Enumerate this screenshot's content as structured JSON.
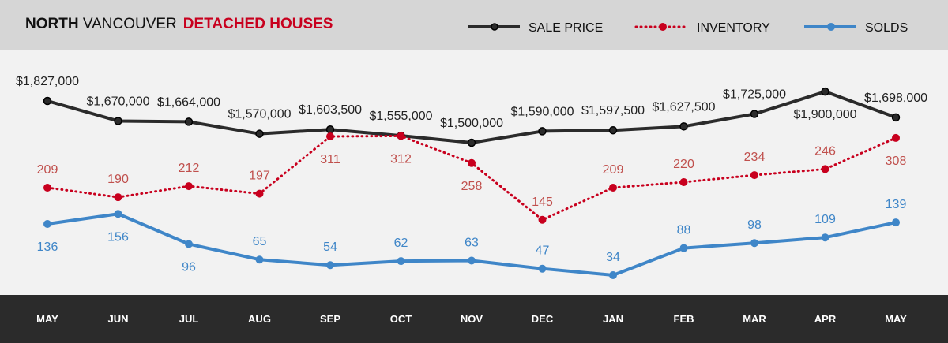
{
  "chart_data": {
    "type": "line",
    "title": {
      "bold": "NORTH",
      "regular": "VANCOUVER",
      "subtitle": "DETACHED HOUSES"
    },
    "categories": [
      "MAY",
      "JUN",
      "JUL",
      "AUG",
      "SEP",
      "OCT",
      "NOV",
      "DEC",
      "JAN",
      "FEB",
      "MAR",
      "APR",
      "MAY"
    ],
    "legend_placement": "top-right",
    "grid": false,
    "series": [
      {
        "name": "SALE PRICE",
        "color": "#2b2b2b",
        "label_color": "#222222",
        "style": "solid",
        "values": [
          1827000,
          1670000,
          1664000,
          1570000,
          1603500,
          1555000,
          1500000,
          1590000,
          1597500,
          1627500,
          1725000,
          1900000,
          1698000
        ],
        "labels": [
          "$1,827,000",
          "$1,670,000",
          "$1,664,000",
          "$1,570,000",
          "$1,603,500",
          "$1,555,000",
          "$1,500,000",
          "$1,590,000",
          "$1,597,500",
          "$1,627,500",
          "$1,725,000",
          "$1,900,000",
          "$1,698,000"
        ],
        "label_pos": [
          "above",
          "above",
          "above",
          "above",
          "above",
          "above",
          "above",
          "above",
          "above",
          "above",
          "above",
          "below",
          "above"
        ]
      },
      {
        "name": "INVENTORY",
        "color": "#c8001e",
        "label_color": "#c0504d",
        "style": "dotted",
        "values": [
          209,
          190,
          212,
          197,
          311,
          312,
          258,
          145,
          209,
          220,
          234,
          246,
          308
        ],
        "labels": [
          "209",
          "190",
          "212",
          "197",
          "311",
          "312",
          "258",
          "145",
          "209",
          "220",
          "234",
          "246",
          "308"
        ],
        "label_pos": [
          "above",
          "above",
          "above",
          "above",
          "below",
          "below",
          "below",
          "above",
          "above",
          "above",
          "above",
          "above",
          "below"
        ]
      },
      {
        "name": "SOLDS",
        "color": "#3f86c8",
        "label_color": "#3f86c8",
        "style": "solid",
        "values": [
          136,
          156,
          96,
          65,
          54,
          62,
          63,
          47,
          34,
          88,
          98,
          109,
          139
        ],
        "labels": [
          "136",
          "156",
          "96",
          "65",
          "54",
          "62",
          "63",
          "47",
          "34",
          "88",
          "98",
          "109",
          "139"
        ],
        "label_pos": [
          "below",
          "below",
          "below",
          "above",
          "above",
          "above",
          "above",
          "above",
          "above",
          "above",
          "above",
          "above",
          "above"
        ]
      }
    ]
  }
}
